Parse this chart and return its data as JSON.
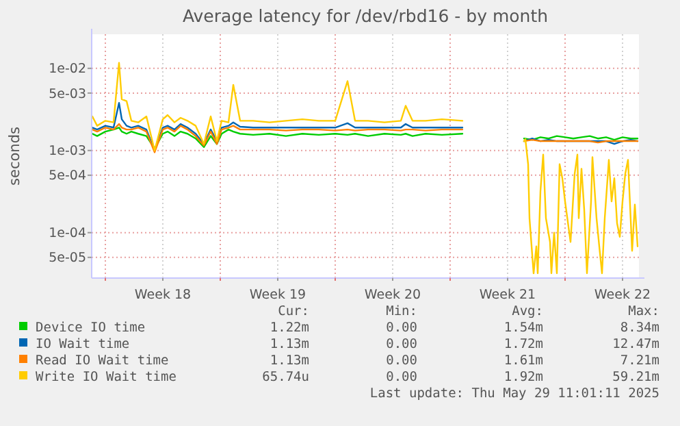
{
  "chart_data": {
    "type": "line",
    "title": "Average latency for /dev/rbd16 - by month",
    "ylabel": "seconds",
    "log": "y",
    "grid": true,
    "legend": "bottom",
    "marker": "none",
    "line_style": "solid",
    "xlim": [
      "2025-04-27T04:00",
      "2025-05-30T12:00"
    ],
    "ylim": [
      2.8e-05,
      0.026
    ],
    "xticks": [
      {
        "value": "2025-04-28",
        "label": null
      },
      {
        "value": "2025-05-01T12:00",
        "label": "Week 18"
      },
      {
        "value": "2025-05-05",
        "label": null
      },
      {
        "value": "2025-05-08T12:00",
        "label": "Week 19"
      },
      {
        "value": "2025-05-12",
        "label": null
      },
      {
        "value": "2025-05-15T12:00",
        "label": "Week 20"
      },
      {
        "value": "2025-05-19",
        "label": null
      },
      {
        "value": "2025-05-22T12:00",
        "label": "Week 21"
      },
      {
        "value": "2025-05-26",
        "label": null
      },
      {
        "value": "2025-05-29T12:00",
        "label": "Week 22"
      }
    ],
    "yticks": [
      {
        "value": 5e-05,
        "label": "5e-05"
      },
      {
        "value": 0.0001,
        "label": "1e-04"
      },
      {
        "value": 0.0005,
        "label": "5e-04"
      },
      {
        "value": 0.001,
        "label": "1e-03"
      },
      {
        "value": 0.005,
        "label": "5e-03"
      },
      {
        "value": 0.01,
        "label": "1e-02"
      }
    ],
    "x": [
      "2025-04-27T05:00",
      "2025-04-27T12:00",
      "2025-04-28",
      "2025-04-28T12:00",
      "2025-04-28T20:00",
      "2025-04-29",
      "2025-04-29T07:00",
      "2025-04-29T14:00",
      "2025-04-30",
      "2025-04-30T12:00",
      "2025-05-01",
      "2025-05-01T12:00",
      "2025-05-01T19:00",
      "2025-05-02T05:00",
      "2025-05-02T14:00",
      "2025-05-03",
      "2025-05-03T12:00",
      "2025-05-04",
      "2025-05-04T10:00",
      "2025-05-04T19:00",
      "2025-05-05T02:00",
      "2025-05-05T12:00",
      "2025-05-05T19:00",
      "2025-05-06T05:00",
      "2025-05-07",
      "2025-05-08",
      "2025-05-09",
      "2025-05-10",
      "2025-05-11",
      "2025-05-12",
      "2025-05-12T18:00",
      "2025-05-13T05:00",
      "2025-05-14",
      "2025-05-15",
      "2025-05-16",
      "2025-05-16T07:00",
      "2025-05-16T17:00",
      "2025-05-17T12:00",
      "2025-05-18T12:00",
      "2025-05-19T18:00",
      "2025-05-21T12:00",
      "2025-05-23T12:00",
      "2025-05-24",
      "2025-05-24T12:00",
      "2025-05-25",
      "2025-05-25T12:00",
      "2025-05-26",
      "2025-05-26T12:00",
      "2025-05-27",
      "2025-05-27T12:00",
      "2025-05-28",
      "2025-05-28T12:00",
      "2025-05-29",
      "2025-05-29T12:00",
      "2025-05-30",
      "2025-05-30T10:00"
    ],
    "series": [
      {
        "name": "Device IO time",
        "color": "#00cc00",
        "values": [
          0.0016,
          0.0015,
          0.0017,
          0.0018,
          0.0019,
          0.0017,
          0.0016,
          0.0017,
          0.0016,
          0.0015,
          0.00105,
          0.0016,
          0.0017,
          0.0015,
          0.0017,
          0.0016,
          0.0014,
          0.0011,
          0.0015,
          0.0012,
          0.0016,
          0.0018,
          0.0017,
          0.0016,
          0.00155,
          0.0016,
          0.0015,
          0.0016,
          0.00155,
          0.0016,
          0.00155,
          0.0016,
          0.0015,
          0.0016,
          0.00155,
          0.0016,
          0.0015,
          0.0016,
          0.00155,
          0.0016,
          null,
          0.0014,
          0.00135,
          0.00145,
          0.0014,
          0.0015,
          0.00145,
          0.0014,
          0.00145,
          0.0015,
          0.0014,
          0.00145,
          0.00135,
          0.00145,
          0.0014,
          0.0014
        ]
      },
      {
        "name": "IO Wait time",
        "color": "#0066b3",
        "values": [
          0.0019,
          0.0018,
          0.002,
          0.0019,
          0.0038,
          0.0024,
          0.002,
          0.0019,
          0.002,
          0.0018,
          0.001,
          0.0019,
          0.002,
          0.0018,
          0.0021,
          0.0019,
          0.0016,
          0.0012,
          0.0018,
          0.0013,
          0.0019,
          0.002,
          0.0022,
          0.00195,
          0.0019,
          0.0019,
          0.0019,
          0.0019,
          0.0019,
          0.0019,
          0.00215,
          0.0019,
          0.0019,
          0.0019,
          0.0019,
          0.0021,
          0.0019,
          0.0019,
          0.0019,
          0.0019,
          null,
          0.0013,
          0.0014,
          0.0013,
          0.00135,
          0.0013,
          0.0013,
          0.0013,
          0.0013,
          0.0013,
          0.0013,
          0.0013,
          0.0012,
          0.0013,
          0.00135,
          0.0013
        ]
      },
      {
        "name": "Read IO Wait time",
        "color": "#ff8000",
        "values": [
          0.0018,
          0.0017,
          0.0019,
          0.0018,
          0.0021,
          0.0019,
          0.0018,
          0.0018,
          0.0019,
          0.0017,
          0.00095,
          0.0018,
          0.0019,
          0.0017,
          0.002,
          0.0018,
          0.0015,
          0.00115,
          0.0017,
          0.0012,
          0.0018,
          0.0019,
          0.002,
          0.0018,
          0.0018,
          0.0018,
          0.00175,
          0.0018,
          0.0018,
          0.00175,
          0.0018,
          0.00175,
          0.0018,
          0.0018,
          0.00175,
          0.0018,
          0.0018,
          0.00175,
          0.0018,
          0.0018,
          null,
          0.0013,
          0.00135,
          0.0013,
          0.0013,
          0.0013,
          0.0013,
          0.0013,
          0.0013,
          0.0013,
          0.00125,
          0.0013,
          0.0013,
          0.0013,
          0.0013,
          0.0013
        ]
      },
      {
        "name": "Write IO Wait time",
        "color": "#ffcc00",
        "x": [
          "2025-04-27T05:00",
          "2025-04-27T12:00",
          "2025-04-28",
          "2025-04-28T12:00",
          "2025-04-28T20:00",
          "2025-04-29",
          "2025-04-29T07:00",
          "2025-04-29T14:00",
          "2025-04-30",
          "2025-04-30T12:00",
          "2025-05-01",
          "2025-05-01T12:00",
          "2025-05-01T19:00",
          "2025-05-02T05:00",
          "2025-05-02T14:00",
          "2025-05-03",
          "2025-05-03T12:00",
          "2025-05-04",
          "2025-05-04T10:00",
          "2025-05-04T19:00",
          "2025-05-05T02:00",
          "2025-05-05T12:00",
          "2025-05-05T19:00",
          "2025-05-06T05:00",
          "2025-05-07",
          "2025-05-08",
          "2025-05-09",
          "2025-05-10",
          "2025-05-11",
          "2025-05-12",
          "2025-05-12T18:00",
          "2025-05-13T05:00",
          "2025-05-14",
          "2025-05-15",
          "2025-05-16",
          "2025-05-16T07:00",
          "2025-05-16T17:00",
          "2025-05-17T12:00",
          "2025-05-18T12:00",
          "2025-05-19T18:00",
          "2025-05-21T12:00",
          "2025-05-23T12:00",
          "2025-05-23T14:00",
          "2025-05-23T18:00",
          "2025-05-23T20:00",
          "2025-05-24T02:00",
          "2025-05-24T06:00",
          "2025-05-24T08:00",
          "2025-05-24T12:00",
          "2025-05-24T16:00",
          "2025-05-24T20:00",
          "2025-05-25T02:00",
          "2025-05-25T04:00",
          "2025-05-25T08:00",
          "2025-05-25T12:00",
          "2025-05-25T16:00",
          "2025-05-25T20:00",
          "2025-05-26",
          "2025-05-26T08:00",
          "2025-05-26T14:00",
          "2025-05-26T18:00",
          "2025-05-26T20:00",
          "2025-05-27",
          "2025-05-27T04:00",
          "2025-05-27T08:00",
          "2025-05-27T14:00",
          "2025-05-27T16:00",
          "2025-05-27T22:00",
          "2025-05-28T02:00",
          "2025-05-28T06:00",
          "2025-05-28T10:00",
          "2025-05-28T16:00",
          "2025-05-28T20:00",
          "2025-05-29",
          "2025-05-29T04:00",
          "2025-05-29T08:00",
          "2025-05-29T12:00",
          "2025-05-29T16:00",
          "2025-05-29T20:00",
          "2025-05-30T02:00",
          "2025-05-30T06:00",
          "2025-05-30T10:00"
        ],
        "values": [
          0.0026,
          0.002,
          0.0023,
          0.0022,
          0.0117,
          0.0042,
          0.004,
          0.0023,
          0.0022,
          0.0026,
          0.001,
          0.0024,
          0.0027,
          0.0022,
          0.0025,
          0.0023,
          0.002,
          0.0012,
          0.0026,
          0.0013,
          0.0023,
          0.0022,
          0.0063,
          0.0023,
          0.0023,
          0.0022,
          0.0023,
          0.0024,
          0.0023,
          0.0023,
          0.007,
          0.0023,
          0.0023,
          0.0022,
          0.0023,
          0.0035,
          0.0023,
          0.0023,
          0.0024,
          0.0023,
          null,
          0.0013,
          0.00137,
          0.00068,
          0.00015,
          3.2e-05,
          6.8e-05,
          3.2e-05,
          0.00032,
          0.00089,
          0.00015,
          7.7e-05,
          3.2e-05,
          0.0001,
          3.2e-05,
          0.00068,
          0.00046,
          0.00024,
          7.7e-05,
          0.00052,
          0.00089,
          0.00015,
          0.0006,
          0.00019,
          3.2e-05,
          0.00024,
          0.00083,
          0.00015,
          6.8e-05,
          3.2e-05,
          0.00015,
          0.00077,
          0.00024,
          0.00046,
          0.00013,
          8.9e-05,
          0.00024,
          0.00052,
          0.00077,
          6e-05,
          0.00022,
          6.8e-05
        ]
      }
    ],
    "annotations": [
      "Cur:",
      "Min:",
      "Avg:",
      "Max:",
      "1.22m",
      "0.00",
      "1.54m",
      "8.34m",
      "1.13m",
      "0.00",
      "1.72m",
      "12.47m",
      "1.13m",
      "0.00",
      "1.61m",
      "7.21m",
      "65.74u",
      "0.00",
      "1.92m",
      "59.21m",
      "Last update: Thu May 29 11:01:11 2025"
    ]
  }
}
